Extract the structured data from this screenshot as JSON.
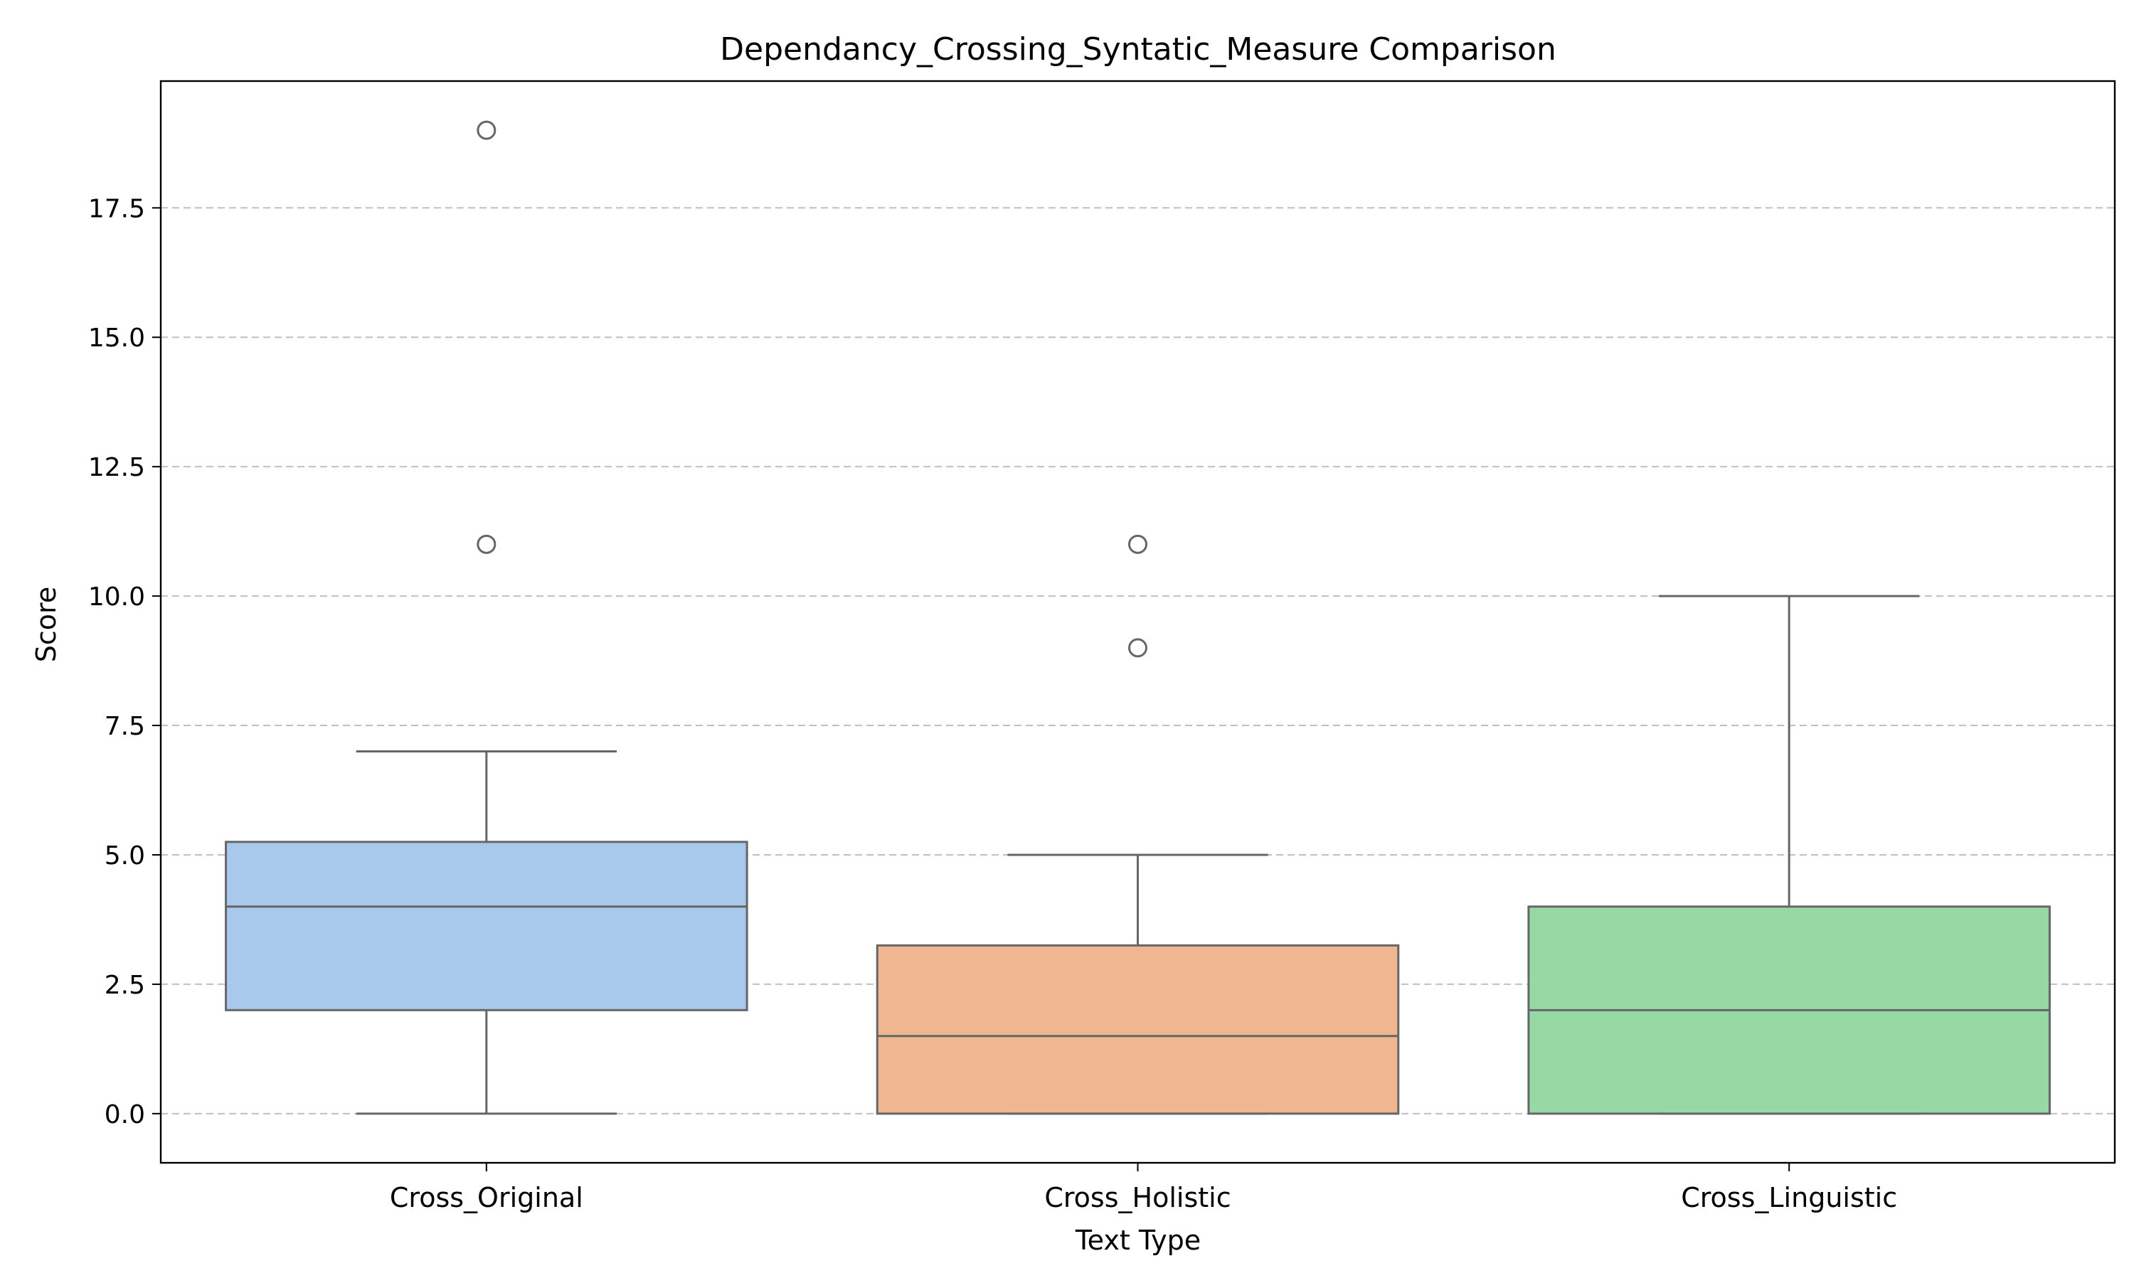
{
  "chart_data": {
    "type": "boxplot",
    "title": "Dependancy_Crossing_Syntatic_Measure Comparison",
    "xlabel": "Text Type",
    "ylabel": "Score",
    "ylim": [
      -0.95,
      19.95
    ],
    "yticks": [
      0.0,
      2.5,
      5.0,
      7.5,
      10.0,
      12.5,
      15.0,
      17.5
    ],
    "ytick_labels": [
      "0.0",
      "2.5",
      "5.0",
      "7.5",
      "10.0",
      "12.5",
      "15.0",
      "17.5"
    ],
    "grid": "y-dashed",
    "categories": [
      "Cross_Original",
      "Cross_Holistic",
      "Cross_Linguistic"
    ],
    "boxes": [
      {
        "category": "Cross_Original",
        "whisker_low": 0,
        "q1": 2.0,
        "median": 4.0,
        "q3": 5.25,
        "whisker_high": 7,
        "outliers": [
          11,
          19
        ],
        "color": "#a8c8ec"
      },
      {
        "category": "Cross_Holistic",
        "whisker_low": 0,
        "q1": 0.0,
        "median": 1.5,
        "q3": 3.25,
        "whisker_high": 5,
        "outliers": [
          9,
          11
        ],
        "color": "#f0b690"
      },
      {
        "category": "Cross_Linguistic",
        "whisker_low": 0,
        "q1": 0.0,
        "median": 2.0,
        "q3": 4.0,
        "whisker_high": 10,
        "outliers": [],
        "color": "#97d9a5"
      }
    ],
    "line_color": "#666666",
    "grid_color": "#c0c0c0"
  }
}
